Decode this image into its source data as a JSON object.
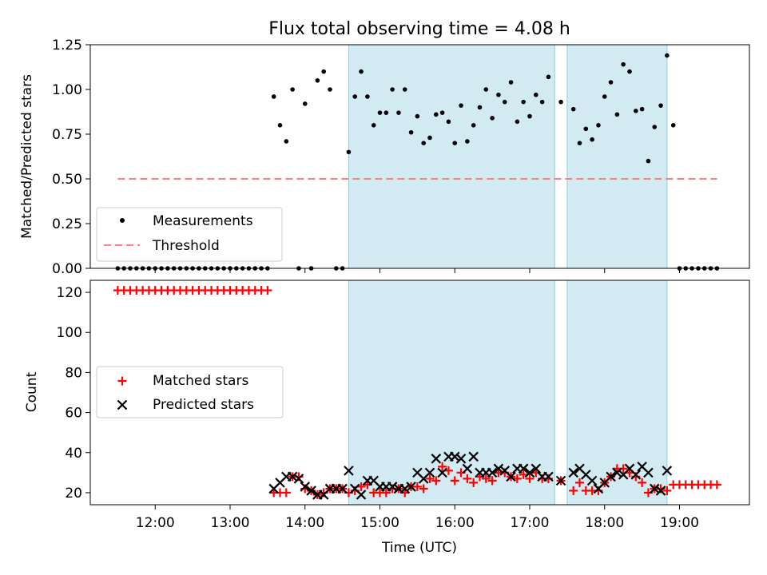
{
  "title": "Flux total observing time = 4.08 h",
  "colors": {
    "measurement": "#000000",
    "threshold": "#ff7f7f",
    "matched": "#ff0000",
    "predicted": "#000000",
    "shade": "#add8e6"
  },
  "chart_data": [
    {
      "type": "scatter",
      "panel": "top",
      "ylabel": "Matched/Predicted stars",
      "xlim": [
        "11:08",
        "19:56"
      ],
      "ylim": [
        0,
        1.25
      ],
      "yticks": [
        "0.00",
        "0.25",
        "0.50",
        "0.75",
        "1.00",
        "1.25"
      ],
      "legend": {
        "placement": "lower-left",
        "entries": [
          "Measurements",
          "Threshold"
        ]
      },
      "threshold": {
        "name": "Threshold",
        "value": 0.5,
        "x": [
          "11:30",
          "19:30"
        ]
      },
      "shaded_ranges": [
        [
          "14:35",
          "17:20"
        ],
        [
          "17:30",
          "18:50"
        ]
      ],
      "series": [
        {
          "name": "Measurements",
          "x": [
            "11:30",
            "11:35",
            "11:40",
            "11:45",
            "11:50",
            "11:55",
            "12:00",
            "12:05",
            "12:10",
            "12:15",
            "12:20",
            "12:25",
            "12:30",
            "12:35",
            "12:40",
            "12:45",
            "12:50",
            "12:55",
            "13:00",
            "13:05",
            "13:10",
            "13:15",
            "13:20",
            "13:25",
            "13:30",
            "13:35",
            "13:40",
            "13:45",
            "13:50",
            "13:55",
            "14:00",
            "14:05",
            "14:10",
            "14:15",
            "14:20",
            "14:25",
            "14:30",
            "14:35",
            "14:40",
            "14:45",
            "14:50",
            "14:55",
            "15:00",
            "15:05",
            "15:10",
            "15:15",
            "15:20",
            "15:25",
            "15:30",
            "15:35",
            "15:40",
            "15:45",
            "15:50",
            "15:55",
            "16:00",
            "16:05",
            "16:10",
            "16:15",
            "16:20",
            "16:25",
            "16:30",
            "16:35",
            "16:40",
            "16:45",
            "16:50",
            "16:55",
            "17:00",
            "17:05",
            "17:10",
            "17:15",
            "17:25",
            "17:35",
            "17:40",
            "17:45",
            "17:50",
            "17:55",
            "18:00",
            "18:05",
            "18:10",
            "18:15",
            "18:20",
            "18:25",
            "18:30",
            "18:35",
            "18:40",
            "18:45",
            "18:50",
            "18:55",
            "19:00",
            "19:05",
            "19:10",
            "19:15",
            "19:20",
            "19:25",
            "19:30"
          ],
          "y": [
            0,
            0,
            0,
            0,
            0,
            0,
            0,
            0,
            0,
            0,
            0,
            0,
            0,
            0,
            0,
            0,
            0,
            0,
            0,
            0,
            0,
            0,
            0,
            0,
            0,
            0.96,
            0.8,
            0.71,
            1.0,
            0,
            0.92,
            0,
            1.05,
            1.1,
            1.0,
            0,
            0,
            0.65,
            0.96,
            1.1,
            0.96,
            0.8,
            0.87,
            0.87,
            1.0,
            0.87,
            1.0,
            0.76,
            0.85,
            0.7,
            0.73,
            0.86,
            0.87,
            0.82,
            0.7,
            0.91,
            0.71,
            0.8,
            0.9,
            1.0,
            0.84,
            0.97,
            0.93,
            1.04,
            0.82,
            0.93,
            0.85,
            0.97,
            0.93,
            1.07,
            0.93,
            0.89,
            0.7,
            0.78,
            0.72,
            0.8,
            0.96,
            1.04,
            0.86,
            1.14,
            1.1,
            0.88,
            0.89,
            0.6,
            0.79,
            0.91,
            1.19,
            0.8,
            0,
            0,
            0,
            0,
            0,
            0,
            0
          ]
        }
      ]
    },
    {
      "type": "scatter",
      "panel": "bottom",
      "xlabel": "Time (UTC)",
      "ylabel": "Count",
      "xlim": [
        "11:08",
        "19:56"
      ],
      "ylim": [
        14,
        126
      ],
      "xticks": [
        "12:00",
        "13:00",
        "14:00",
        "15:00",
        "16:00",
        "17:00",
        "18:00",
        "19:00"
      ],
      "yticks": [
        "20",
        "40",
        "60",
        "80",
        "100",
        "120"
      ],
      "legend": {
        "placement": "center-left",
        "entries": [
          "Matched stars",
          "Predicted stars"
        ]
      },
      "shaded_ranges": [
        [
          "14:35",
          "17:20"
        ],
        [
          "17:30",
          "18:50"
        ]
      ],
      "series": [
        {
          "name": "Matched stars",
          "x": [
            "11:30",
            "11:35",
            "11:40",
            "11:45",
            "11:50",
            "11:55",
            "12:00",
            "12:05",
            "12:10",
            "12:15",
            "12:20",
            "12:25",
            "12:30",
            "12:35",
            "12:40",
            "12:45",
            "12:50",
            "12:55",
            "13:00",
            "13:05",
            "13:10",
            "13:15",
            "13:20",
            "13:25",
            "13:30",
            "13:35",
            "13:40",
            "13:45",
            "13:50",
            "13:55",
            "14:00",
            "14:05",
            "14:10",
            "14:15",
            "14:20",
            "14:25",
            "14:30",
            "14:35",
            "14:40",
            "14:45",
            "14:50",
            "14:55",
            "15:00",
            "15:05",
            "15:10",
            "15:15",
            "15:20",
            "15:25",
            "15:30",
            "15:35",
            "15:40",
            "15:45",
            "15:50",
            "15:55",
            "16:00",
            "16:05",
            "16:10",
            "16:15",
            "16:20",
            "16:25",
            "16:30",
            "16:35",
            "16:40",
            "16:45",
            "16:50",
            "16:55",
            "17:00",
            "17:05",
            "17:10",
            "17:15",
            "17:25",
            "17:35",
            "17:40",
            "17:45",
            "17:50",
            "17:55",
            "18:00",
            "18:05",
            "18:10",
            "18:15",
            "18:20",
            "18:25",
            "18:30",
            "18:35",
            "18:40",
            "18:45",
            "18:50",
            "18:55",
            "19:00",
            "19:05",
            "19:10",
            "19:15",
            "19:20",
            "19:25",
            "19:30"
          ],
          "y": [
            121,
            121,
            121,
            121,
            121,
            121,
            121,
            121,
            121,
            121,
            121,
            121,
            121,
            121,
            121,
            121,
            121,
            121,
            121,
            121,
            121,
            121,
            121,
            121,
            121,
            20,
            20,
            20,
            28,
            28,
            22,
            21,
            19,
            20,
            22,
            22,
            22,
            20,
            21,
            23,
            24,
            20,
            20,
            20,
            22,
            22,
            20,
            23,
            23,
            22,
            27,
            26,
            33,
            31,
            26,
            30,
            27,
            25,
            28,
            27,
            26,
            30,
            30,
            28,
            27,
            29,
            27,
            30,
            27,
            27,
            26,
            21,
            25,
            21,
            21,
            21,
            25,
            28,
            32,
            32,
            30,
            28,
            25,
            20,
            22,
            22,
            21,
            24,
            24,
            24,
            24,
            24,
            24,
            24,
            24
          ]
        },
        {
          "name": "Predicted stars",
          "x": [
            "13:35",
            "13:40",
            "13:45",
            "13:50",
            "13:55",
            "14:00",
            "14:05",
            "14:10",
            "14:15",
            "14:20",
            "14:25",
            "14:30",
            "14:35",
            "14:40",
            "14:45",
            "14:50",
            "14:55",
            "15:00",
            "15:05",
            "15:10",
            "15:15",
            "15:20",
            "15:25",
            "15:30",
            "15:35",
            "15:40",
            "15:45",
            "15:50",
            "15:55",
            "16:00",
            "16:05",
            "16:10",
            "16:15",
            "16:20",
            "16:25",
            "16:30",
            "16:35",
            "16:40",
            "16:45",
            "16:50",
            "16:55",
            "17:00",
            "17:05",
            "17:10",
            "17:15",
            "17:25",
            "17:35",
            "17:40",
            "17:45",
            "17:50",
            "17:55",
            "18:00",
            "18:05",
            "18:10",
            "18:15",
            "18:20",
            "18:25",
            "18:30",
            "18:35",
            "18:40",
            "18:45",
            "18:50"
          ],
          "y": [
            22,
            25,
            28,
            28,
            27,
            23,
            21,
            19,
            19,
            22,
            22,
            22,
            31,
            22,
            19,
            26,
            26,
            23,
            23,
            23,
            22,
            22,
            23,
            30,
            27,
            30,
            37,
            30,
            38,
            38,
            37,
            32,
            38,
            30,
            30,
            30,
            32,
            31,
            28,
            32,
            32,
            30,
            32,
            28,
            28,
            26,
            30,
            32,
            29,
            26,
            22,
            25,
            28,
            30,
            29,
            32,
            29,
            33,
            30,
            22,
            21,
            31
          ]
        }
      ]
    }
  ]
}
